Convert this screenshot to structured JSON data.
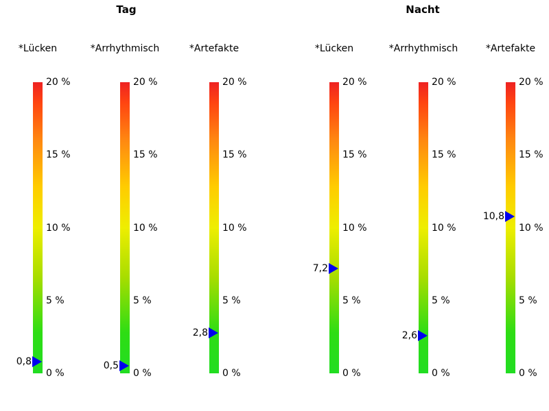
{
  "colors": {
    "marker": "#0000ee",
    "gradient_top_red": "#ee2222",
    "gradient_mid_yellow": "#eeee00",
    "gradient_bottom_green": "#22dd22",
    "background": "#ffffff",
    "text": "#000000"
  },
  "chart_data": {
    "type": "bar",
    "subtype": "vertical-gauge-with-marker",
    "unit": "%",
    "axis": {
      "min": 0,
      "max": 20,
      "tick_labels": [
        "20 %",
        "15 %",
        "10 %",
        "5 %",
        "0 %"
      ],
      "grid": false
    },
    "groups": [
      {
        "title": "Tag",
        "gauges": [
          {
            "label": "*Lücken",
            "value": 0.8,
            "value_label": "0,8"
          },
          {
            "label": "*Arrhythmisch",
            "value": 0.5,
            "value_label": "0,5"
          },
          {
            "label": "*Artefakte",
            "value": 2.8,
            "value_label": "2,8"
          }
        ]
      },
      {
        "title": "Nacht",
        "gauges": [
          {
            "label": "*Lücken",
            "value": 7.2,
            "value_label": "7,2"
          },
          {
            "label": "*Arrhythmisch",
            "value": 2.6,
            "value_label": "2,6"
          },
          {
            "label": "*Artefakte",
            "value": 10.8,
            "value_label": "10,8"
          }
        ]
      }
    ]
  }
}
